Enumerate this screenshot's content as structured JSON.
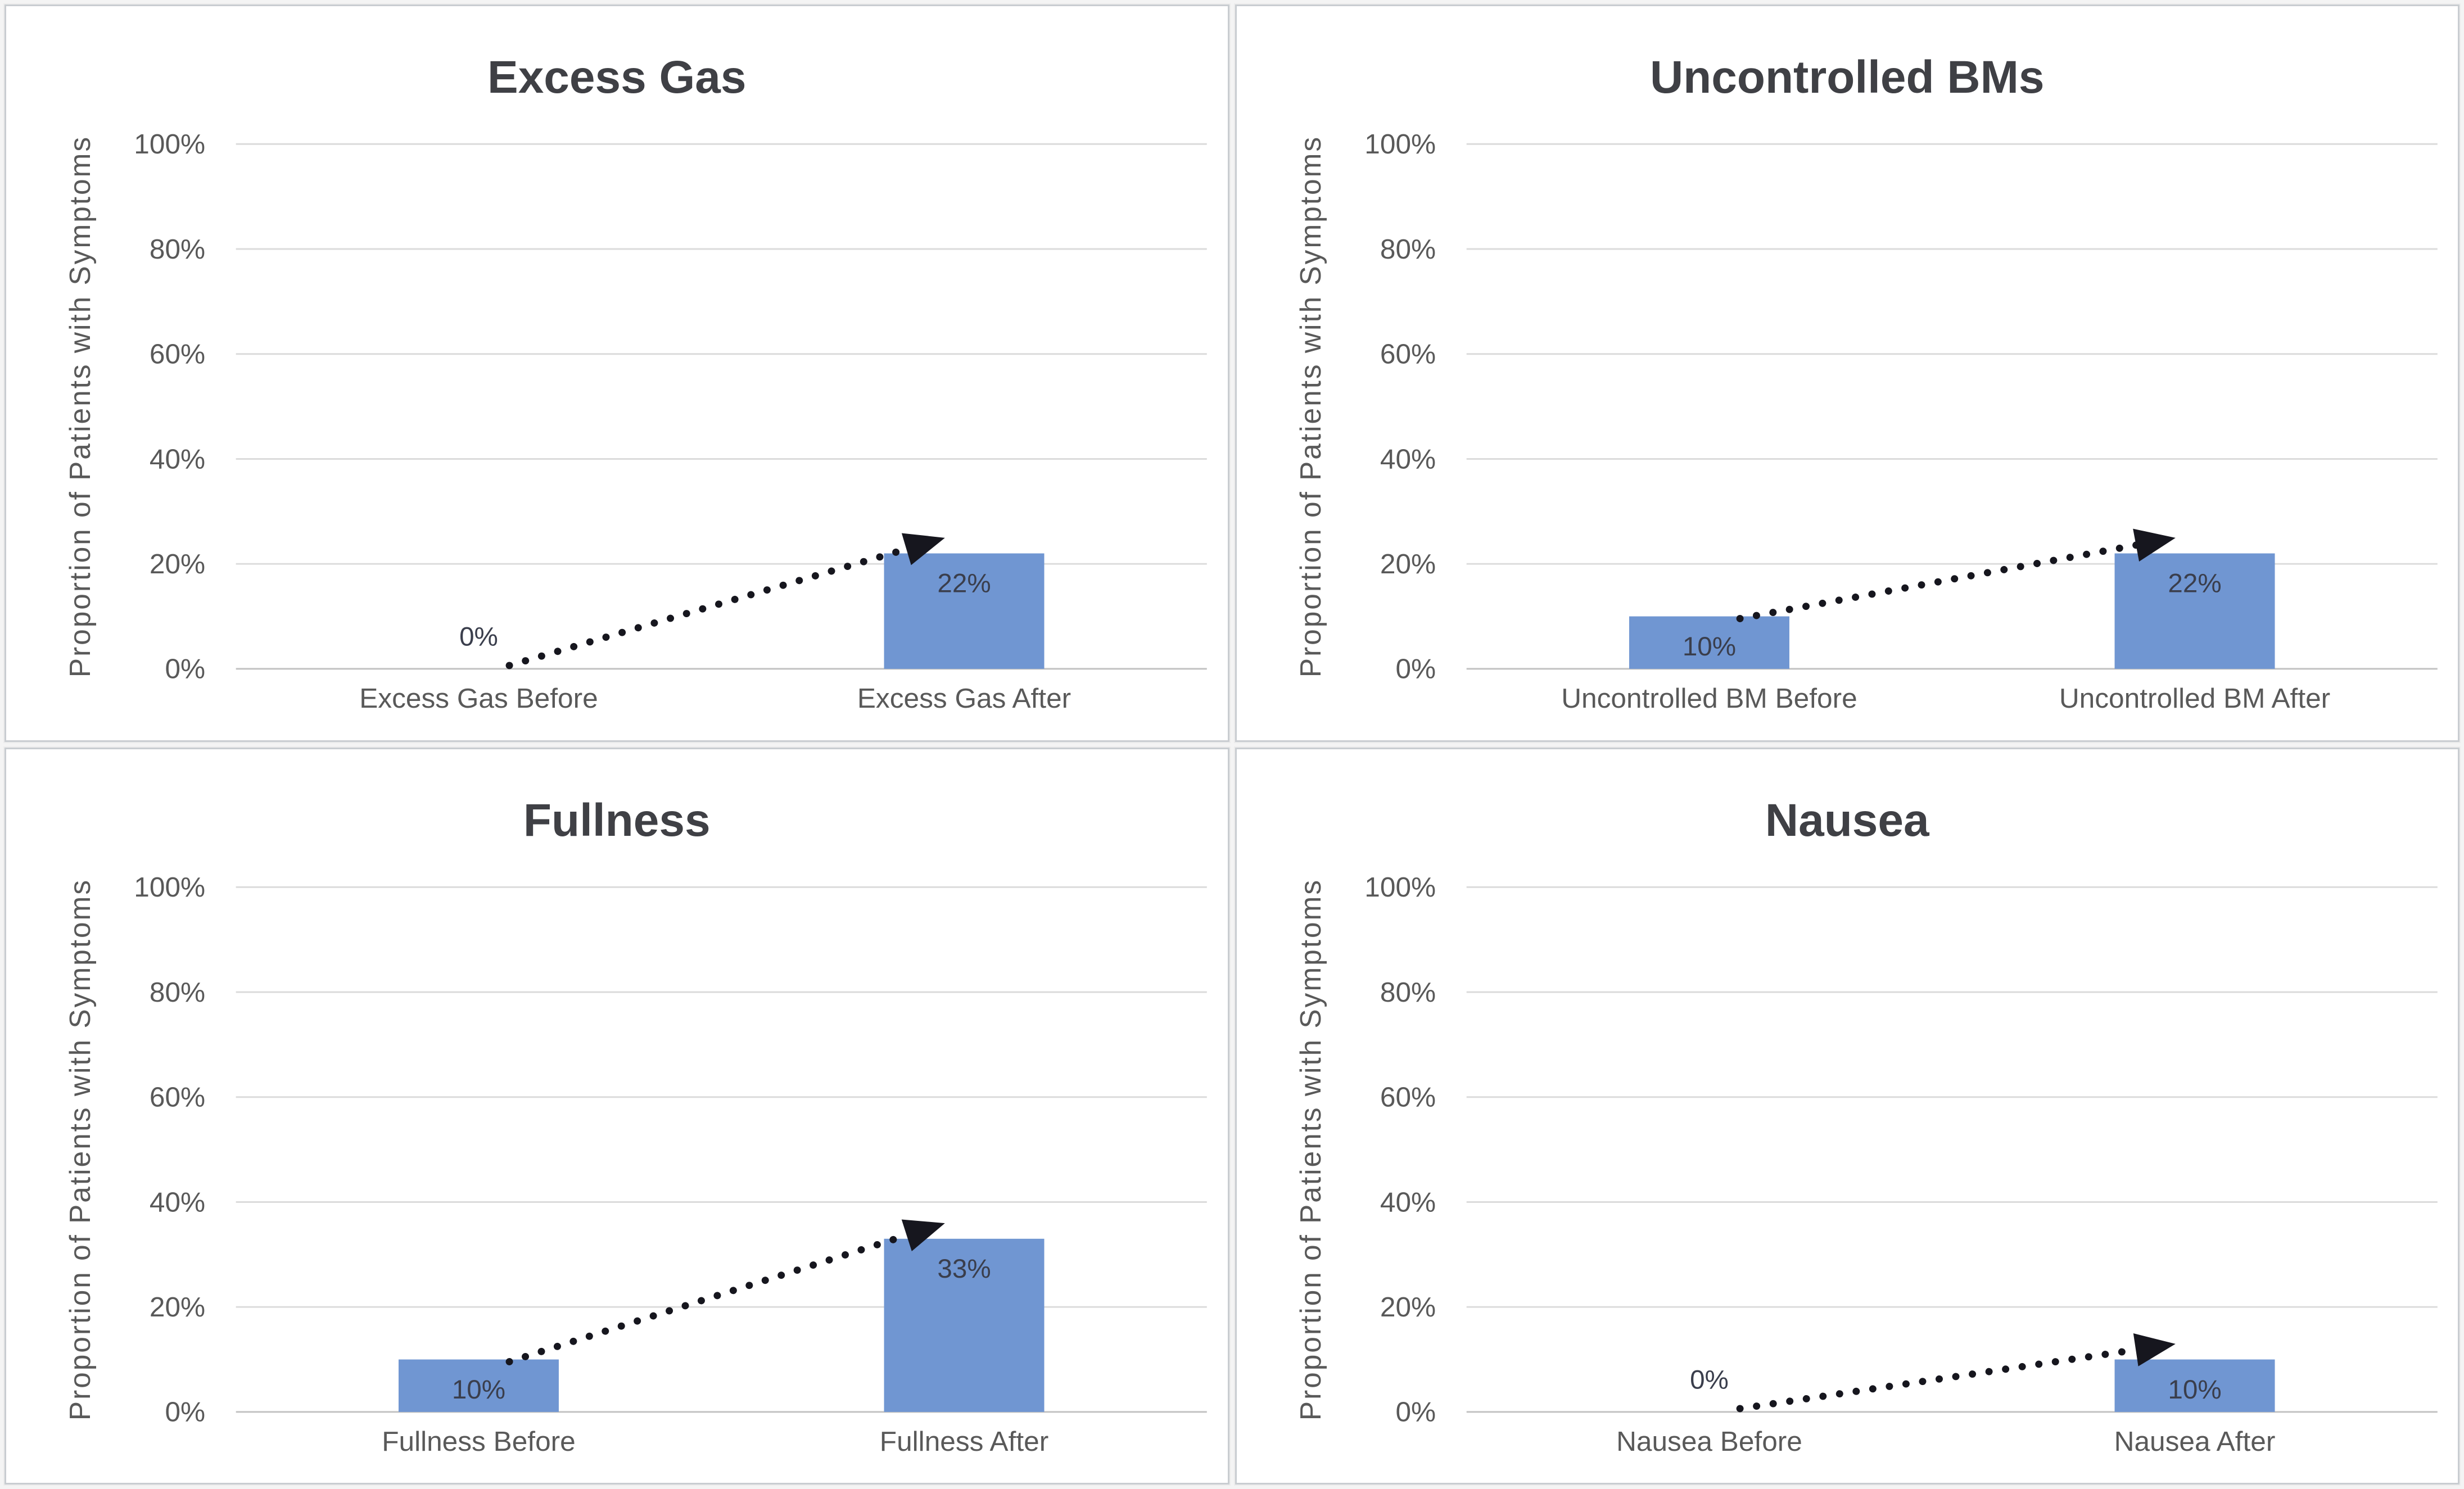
{
  "chart_defaults": {
    "ylabel": "Proportion of Patients with Symptoms",
    "ytick_values": [
      0,
      20,
      40,
      60,
      80,
      100
    ],
    "ytick_labels": [
      "0%",
      "20%",
      "40%",
      "60%",
      "80%",
      "100%"
    ],
    "ylim": [
      0,
      100
    ],
    "grid_on": true,
    "legend": "none",
    "bar_color": "#7096D2",
    "grid_color": "#DBDBDB",
    "axis_color": "#C2C2C2",
    "tick_text_color": "#595959",
    "title_color": "#3F4045",
    "value_label_color": "#3A3E4C",
    "arrow_color": "#16161E"
  },
  "chart_data": [
    {
      "type": "bar",
      "title": "Excess Gas",
      "categories": [
        "Excess Gas Before",
        "Excess Gas After"
      ],
      "values": [
        0,
        22
      ],
      "value_labels": [
        "0%",
        "22%"
      ],
      "trend_arrow": true
    },
    {
      "type": "bar",
      "title": "Uncontrolled BMs",
      "categories": [
        "Uncontrolled BM Before",
        "Uncontrolled BM After"
      ],
      "values": [
        10,
        22
      ],
      "value_labels": [
        "10%",
        "22%"
      ],
      "trend_arrow": true
    },
    {
      "type": "bar",
      "title": "Fullness",
      "categories": [
        "Fullness Before",
        "Fullness After"
      ],
      "values": [
        10,
        33
      ],
      "value_labels": [
        "10%",
        "33%"
      ],
      "trend_arrow": true
    },
    {
      "type": "bar",
      "title": "Nausea",
      "categories": [
        "Nausea Before",
        "Nausea After"
      ],
      "values": [
        0,
        10
      ],
      "value_labels": [
        "0%",
        "10%"
      ],
      "trend_arrow": true
    }
  ]
}
